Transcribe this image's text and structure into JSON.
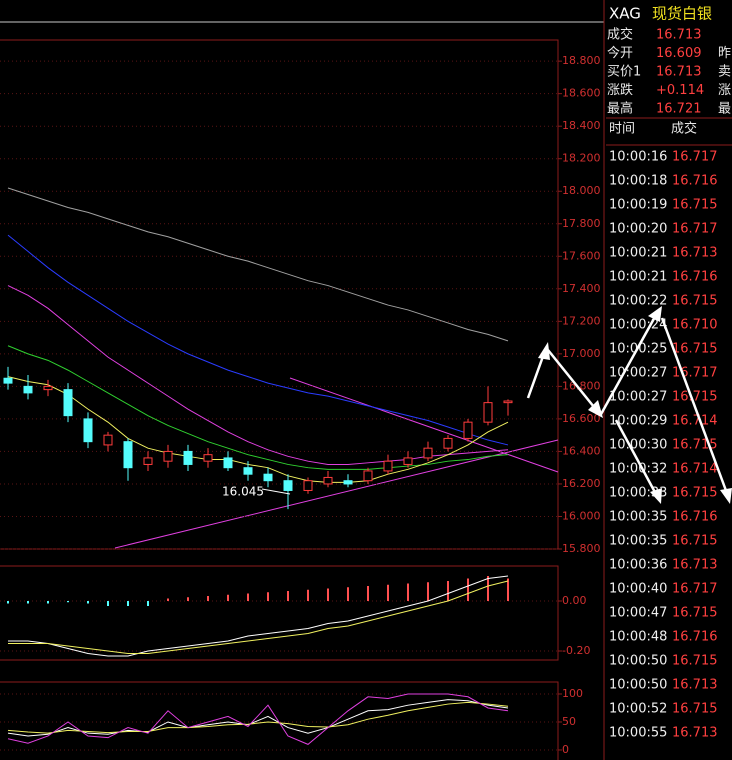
{
  "chart_data": [
    {
      "type": "candlestick",
      "annotation": "16.045",
      "up_color": "#ff3c3c",
      "down_color": "#54fcfc",
      "open": [
        16.85,
        16.8,
        16.78,
        16.78,
        16.6,
        16.44,
        16.46,
        16.32,
        16.34,
        16.4,
        16.34,
        16.36,
        16.3,
        16.26,
        16.22,
        16.16,
        16.2,
        16.22,
        16.22,
        16.28,
        16.32,
        16.36,
        16.42,
        16.48,
        16.58,
        16.7
      ],
      "high": [
        16.92,
        16.87,
        16.84,
        16.82,
        16.64,
        16.52,
        16.48,
        16.4,
        16.44,
        16.44,
        16.42,
        16.4,
        16.34,
        16.3,
        16.26,
        16.24,
        16.28,
        16.26,
        16.3,
        16.38,
        16.4,
        16.46,
        16.5,
        16.6,
        16.8,
        16.72
      ],
      "low": [
        16.78,
        16.72,
        16.74,
        16.58,
        16.42,
        16.4,
        16.22,
        16.28,
        16.3,
        16.28,
        16.3,
        16.28,
        16.22,
        16.18,
        16.045,
        16.14,
        16.18,
        16.18,
        16.2,
        16.26,
        16.3,
        16.34,
        16.4,
        16.46,
        16.56,
        16.62
      ],
      "close": [
        16.82,
        16.76,
        16.8,
        16.62,
        16.46,
        16.5,
        16.3,
        16.36,
        16.4,
        16.32,
        16.38,
        16.3,
        16.26,
        16.22,
        16.16,
        16.22,
        16.24,
        16.2,
        16.28,
        16.34,
        16.36,
        16.42,
        16.48,
        16.58,
        16.7,
        16.71
      ],
      "series": [
        {
          "color": "#a0a0a0",
          "values": [
            18.02,
            17.98,
            17.94,
            17.9,
            17.87,
            17.83,
            17.79,
            17.75,
            17.72,
            17.68,
            17.64,
            17.6,
            17.57,
            17.53,
            17.49,
            17.45,
            17.42,
            17.38,
            17.34,
            17.3,
            17.27,
            17.23,
            17.19,
            17.15,
            17.12,
            17.08
          ]
        },
        {
          "color": "#2a3cff",
          "values": [
            17.73,
            17.63,
            17.53,
            17.44,
            17.36,
            17.28,
            17.2,
            17.13,
            17.06,
            17.0,
            16.95,
            16.9,
            16.86,
            16.82,
            16.79,
            16.76,
            16.74,
            16.71,
            16.68,
            16.65,
            16.62,
            16.59,
            16.55,
            16.51,
            16.47,
            16.44
          ]
        },
        {
          "color": "#e040e0",
          "values": [
            17.42,
            17.36,
            17.28,
            17.18,
            17.08,
            16.98,
            16.9,
            16.82,
            16.74,
            16.66,
            16.59,
            16.52,
            16.46,
            16.41,
            16.37,
            16.34,
            16.32,
            16.32,
            16.33,
            16.34,
            16.35,
            16.37,
            16.38,
            16.39,
            16.4,
            16.41
          ]
        },
        {
          "color": "#30d030",
          "values": [
            17.05,
            17.0,
            16.96,
            16.9,
            16.83,
            16.76,
            16.69,
            16.62,
            16.56,
            16.51,
            16.46,
            16.42,
            16.38,
            16.35,
            16.32,
            16.3,
            16.29,
            16.29,
            16.29,
            16.3,
            16.31,
            16.32,
            16.34,
            16.35,
            16.37,
            16.38
          ]
        },
        {
          "color": "#f0f060",
          "values": [
            16.86,
            16.83,
            16.81,
            16.75,
            16.66,
            16.58,
            16.48,
            16.42,
            16.39,
            16.37,
            16.35,
            16.35,
            16.32,
            16.3,
            16.25,
            16.22,
            16.21,
            16.21,
            16.22,
            16.26,
            16.29,
            16.33,
            16.38,
            16.44,
            16.52,
            16.58
          ]
        }
      ],
      "ylim": [
        15.8,
        18.93
      ],
      "yticks": [
        {
          "value": 18.8,
          "label": "18.800"
        },
        {
          "value": 18.6,
          "label": "18.600"
        },
        {
          "value": 18.4,
          "label": "18.400"
        },
        {
          "value": 18.2,
          "label": "18.200"
        },
        {
          "value": 18.0,
          "label": "18.000"
        },
        {
          "value": 17.8,
          "label": "17.800"
        },
        {
          "value": 17.6,
          "label": "17.600"
        },
        {
          "value": 17.4,
          "label": "17.400"
        },
        {
          "value": 17.2,
          "label": "17.200"
        },
        {
          "value": 17.0,
          "label": "17.000"
        },
        {
          "value": 16.8,
          "label": "16.800"
        },
        {
          "value": 16.6,
          "label": "16.600"
        },
        {
          "value": 16.4,
          "label": "16.400"
        },
        {
          "value": 16.2,
          "label": "16.200"
        },
        {
          "value": 16.0,
          "label": "16.000"
        },
        {
          "value": 15.8,
          "label": "15.800"
        }
      ],
      "grid": true
    },
    {
      "type": "macd",
      "up_color": "#ff5050",
      "down_color": "#54fcfc",
      "values": [
        -0.01,
        -0.01,
        -0.01,
        -0.005,
        -0.01,
        -0.02,
        -0.02,
        -0.02,
        0.01,
        0.015,
        0.02,
        0.025,
        0.03,
        0.035,
        0.04,
        0.045,
        0.05,
        0.055,
        0.06,
        0.065,
        0.07,
        0.075,
        0.08,
        0.09,
        0.1,
        0.09
      ],
      "series": [
        {
          "color": "#ffffff",
          "values": [
            -0.16,
            -0.16,
            -0.17,
            -0.19,
            -0.21,
            -0.22,
            -0.22,
            -0.2,
            -0.19,
            -0.18,
            -0.17,
            -0.16,
            -0.14,
            -0.13,
            -0.12,
            -0.11,
            -0.09,
            -0.08,
            -0.06,
            -0.04,
            -0.02,
            0.0,
            0.03,
            0.06,
            0.09,
            0.1
          ]
        },
        {
          "color": "#f0f060",
          "values": [
            -0.17,
            -0.17,
            -0.17,
            -0.18,
            -0.19,
            -0.2,
            -0.21,
            -0.21,
            -0.2,
            -0.19,
            -0.18,
            -0.17,
            -0.16,
            -0.15,
            -0.14,
            -0.13,
            -0.11,
            -0.1,
            -0.08,
            -0.06,
            -0.04,
            -0.02,
            0.0,
            0.03,
            0.06,
            0.08
          ]
        }
      ],
      "ylim": [
        -0.236,
        0.14
      ],
      "yticks": [
        {
          "value": 0,
          "label": "0.00"
        },
        {
          "value": -0.2,
          "label": "-0.20"
        }
      ],
      "grid": true
    },
    {
      "type": "kdj",
      "series": [
        {
          "color": "#ffffff",
          "values": [
            30,
            25,
            28,
            40,
            30,
            28,
            35,
            32,
            50,
            40,
            45,
            50,
            45,
            60,
            40,
            30,
            40,
            55,
            70,
            72,
            80,
            85,
            90,
            88,
            80,
            75
          ]
        },
        {
          "color": "#f0f060",
          "values": [
            35,
            32,
            30,
            35,
            33,
            31,
            33,
            33,
            40,
            40,
            42,
            45,
            46,
            50,
            47,
            42,
            41,
            45,
            55,
            62,
            70,
            76,
            82,
            85,
            82,
            78
          ]
        },
        {
          "color": "#e040e0",
          "values": [
            20,
            12,
            25,
            50,
            25,
            22,
            40,
            30,
            70,
            40,
            50,
            60,
            42,
            80,
            25,
            10,
            40,
            70,
            95,
            92,
            100,
            100,
            100,
            95,
            75,
            70
          ]
        }
      ],
      "ylim": [
        -17.9,
        121.4
      ],
      "yticks": [
        100,
        50,
        0
      ],
      "grid": true
    }
  ],
  "quote_panel": {
    "symbol": "XAG",
    "name": "现货白银",
    "rows": [
      {
        "label": "成交",
        "value": "16.713"
      },
      {
        "label": "今开",
        "value": "16.609",
        "extra": "昨"
      },
      {
        "label": "买价1",
        "value": "16.713",
        "extra": "卖"
      },
      {
        "label": "涨跌",
        "value": "+0.114",
        "extra": "涨"
      },
      {
        "label": "最高",
        "value": "16.721",
        "extra": "最"
      }
    ],
    "trades": {
      "headers": [
        "时间",
        "成交"
      ],
      "rows": [
        [
          "10:00:16",
          "16.717"
        ],
        [
          "10:00:18",
          "16.716"
        ],
        [
          "10:00:19",
          "16.715"
        ],
        [
          "10:00:20",
          "16.717"
        ],
        [
          "10:00:21",
          "16.713"
        ],
        [
          "10:00:21",
          "16.716"
        ],
        [
          "10:00:22",
          "16.715"
        ],
        [
          "10:00:24",
          "16.710"
        ],
        [
          "10:00:25",
          "16.715"
        ],
        [
          "10:00:27",
          "16.717"
        ],
        [
          "10:00:27",
          "16.715"
        ],
        [
          "10:00:29",
          "16.714"
        ],
        [
          "10:00:30",
          "16.715"
        ],
        [
          "10:00:32",
          "16.714"
        ],
        [
          "10:00:33",
          "16.715"
        ],
        [
          "10:00:35",
          "16.716"
        ],
        [
          "10:00:35",
          "16.715"
        ],
        [
          "10:00:36",
          "16.713"
        ],
        [
          "10:00:40",
          "16.717"
        ],
        [
          "10:00:47",
          "16.715"
        ],
        [
          "10:00:48",
          "16.716"
        ],
        [
          "10:00:50",
          "16.715"
        ],
        [
          "10:00:50",
          "16.713"
        ],
        [
          "10:00:52",
          "16.715"
        ],
        [
          "10:00:55",
          "16.713"
        ]
      ]
    }
  }
}
